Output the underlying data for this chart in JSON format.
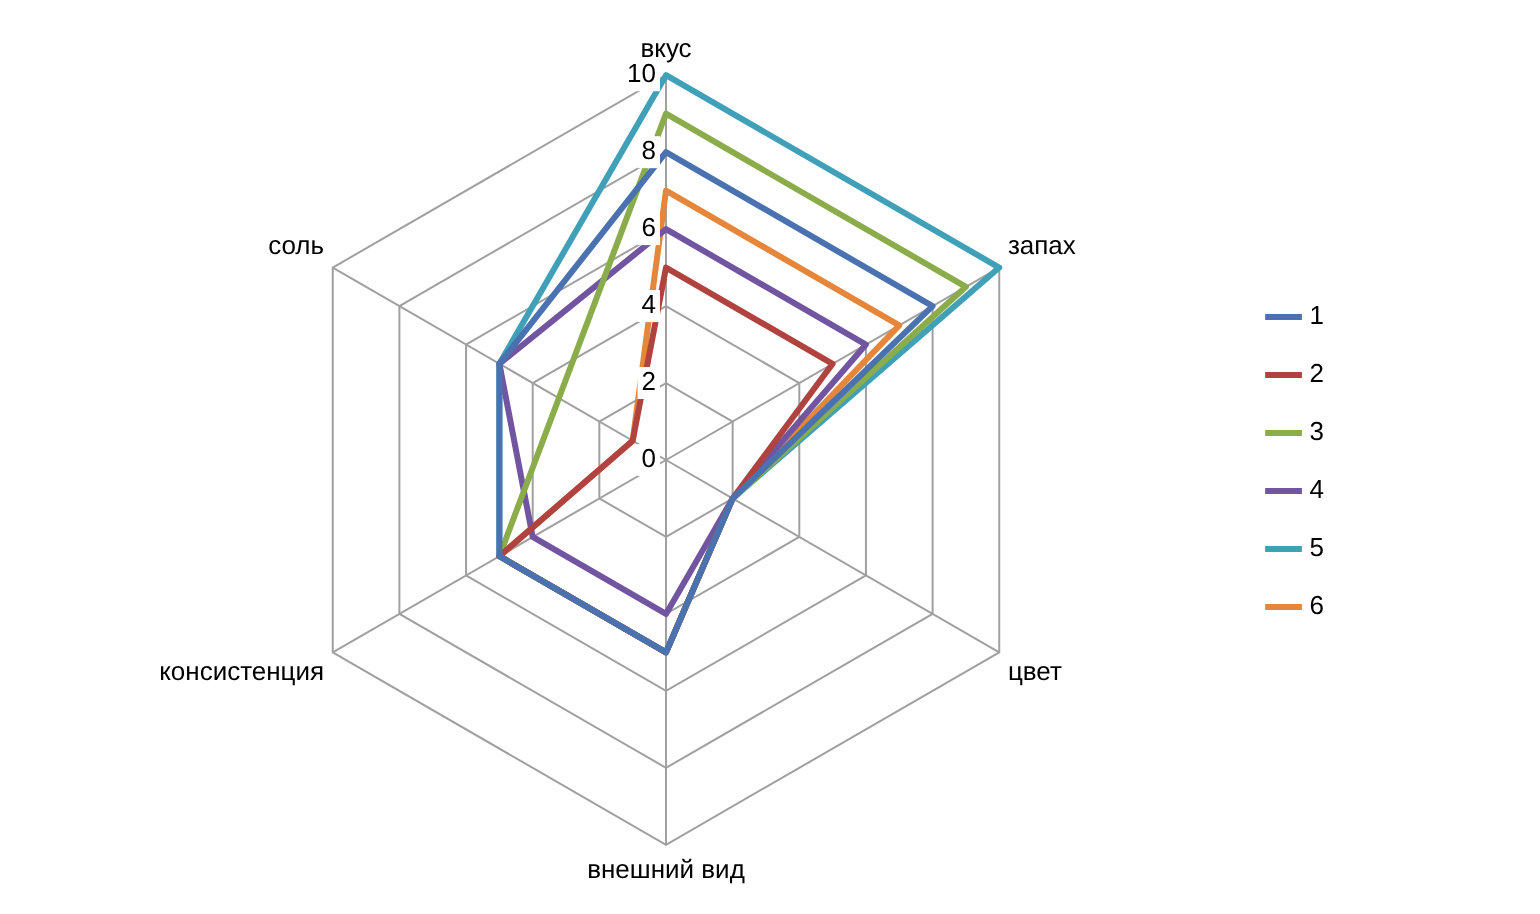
{
  "chart_data": {
    "type": "radar",
    "categories": [
      "вкус",
      "запах",
      "цвет",
      "внешний вид",
      "консистенция",
      "соль"
    ],
    "series": [
      {
        "name": "1",
        "color": "#4a72b0",
        "values": [
          8,
          8,
          2,
          5,
          5,
          5
        ]
      },
      {
        "name": "2",
        "color": "#b0423f",
        "values": [
          5,
          5,
          2,
          5,
          5,
          1
        ]
      },
      {
        "name": "3",
        "color": "#8aac4a",
        "values": [
          9,
          9,
          2,
          5,
          5,
          null
        ]
      },
      {
        "name": "4",
        "color": "#7155a0",
        "values": [
          6,
          6,
          2,
          4,
          4,
          5
        ]
      },
      {
        "name": "5",
        "color": "#3fa0b8",
        "values": [
          10,
          10,
          2,
          5,
          5,
          5
        ]
      },
      {
        "name": "6",
        "color": "#e5863a",
        "values": [
          7,
          7,
          2,
          5,
          5,
          1
        ]
      }
    ],
    "ylim": [
      0,
      10
    ],
    "yticks": [
      0,
      2,
      4,
      6,
      8,
      10
    ],
    "grid": true,
    "legend": "right"
  }
}
